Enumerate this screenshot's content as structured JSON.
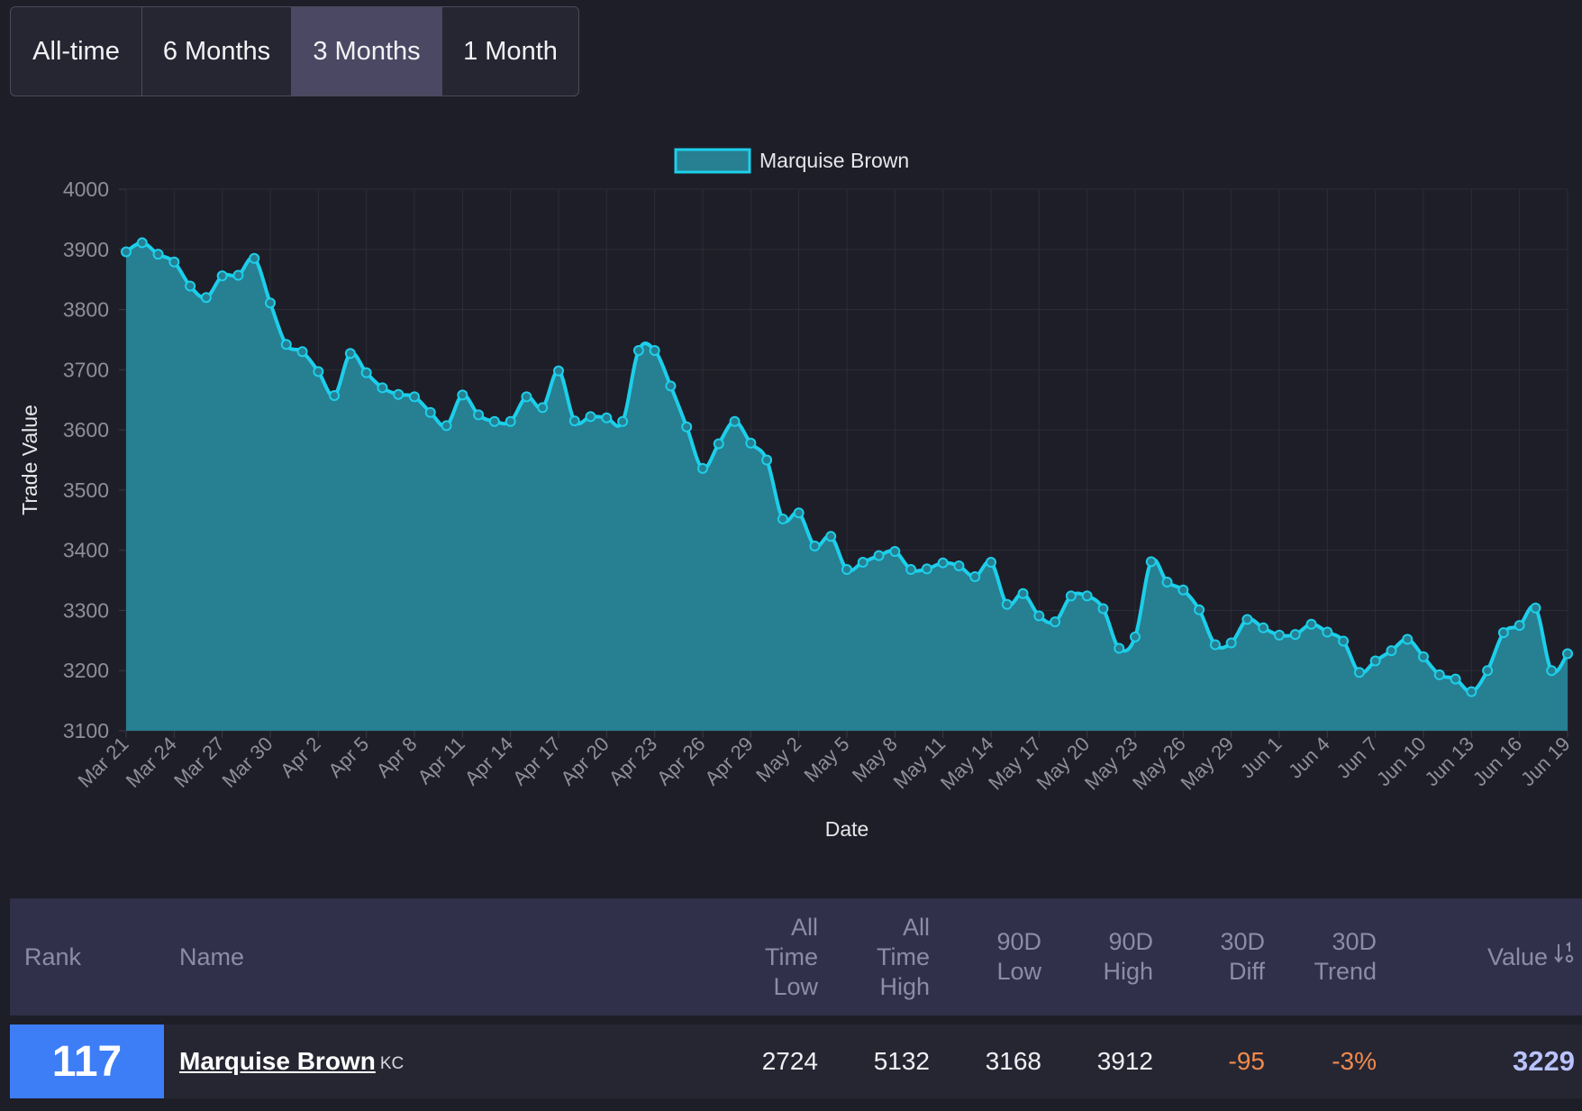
{
  "tabs": [
    {
      "label": "All-time",
      "active": false
    },
    {
      "label": "6 Months",
      "active": false
    },
    {
      "label": "3 Months",
      "active": true
    },
    {
      "label": "1 Month",
      "active": false
    }
  ],
  "colors": {
    "background": "#1e1e28",
    "line": "#1ccfea",
    "fill": "#277f92",
    "grid": "#2c2c38",
    "rank_box": "#3d7ef7",
    "negative": "#f08a4b",
    "value": "#b9c3ff"
  },
  "chart_data": {
    "type": "area",
    "xlabel": "Date",
    "ylabel": "Trade Value",
    "ylim": [
      3100,
      4000
    ],
    "yticks": [
      "4000",
      "3900",
      "3800",
      "3700",
      "3600",
      "3500",
      "3400",
      "3300",
      "3200",
      "3100"
    ],
    "xticks": [
      "Mar 21",
      "Mar 24",
      "Mar 27",
      "Mar 30",
      "Apr 2",
      "Apr 5",
      "Apr 8",
      "Apr 11",
      "Apr 14",
      "Apr 17",
      "Apr 20",
      "Apr 23",
      "Apr 26",
      "Apr 29",
      "May 2",
      "May 5",
      "May 8",
      "May 11",
      "May 14",
      "May 17",
      "May 20",
      "May 23",
      "May 26",
      "May 29",
      "Jun 1",
      "Jun 4",
      "Jun 7",
      "Jun 10",
      "Jun 13",
      "Jun 16",
      "Jun 19"
    ],
    "legend": "top-center",
    "grid": true,
    "series": [
      {
        "name": "Marquise Brown",
        "values": [
          3896,
          3911,
          3892,
          3879,
          3839,
          3820,
          3856,
          3857,
          3885,
          3811,
          3742,
          3730,
          3697,
          3657,
          3727,
          3695,
          3670,
          3659,
          3655,
          3629,
          3607,
          3658,
          3625,
          3614,
          3614,
          3655,
          3637,
          3698,
          3615,
          3622,
          3620,
          3614,
          3732,
          3732,
          3673,
          3605,
          3536,
          3577,
          3614,
          3578,
          3550,
          3452,
          3462,
          3407,
          3423,
          3368,
          3380,
          3391,
          3398,
          3368,
          3369,
          3379,
          3374,
          3356,
          3380,
          3310,
          3328,
          3291,
          3281,
          3324,
          3324,
          3303,
          3237,
          3256,
          3381,
          3347,
          3334,
          3301,
          3243,
          3246,
          3285,
          3271,
          3259,
          3260,
          3277,
          3264,
          3249,
          3197,
          3216,
          3233,
          3252,
          3223,
          3193,
          3186,
          3165,
          3200,
          3263,
          3275,
          3304,
          3200,
          3228
        ]
      }
    ]
  },
  "table": {
    "headers": {
      "rank": "Rank",
      "name": "Name",
      "all_time_low": [
        "All",
        "Time",
        "Low"
      ],
      "all_time_high": [
        "All",
        "Time",
        "High"
      ],
      "low_90d": [
        "90D",
        "Low"
      ],
      "high_90d": [
        "90D",
        "High"
      ],
      "diff_30d": [
        "30D",
        "Diff"
      ],
      "trend_30d": [
        "30D",
        "Trend"
      ],
      "value": "Value"
    },
    "sort_icon": "sort-descending-icon",
    "row": {
      "rank": "117",
      "name": "Marquise Brown",
      "team": "KC",
      "all_time_low": "2724",
      "all_time_high": "5132",
      "low_90d": "3168",
      "high_90d": "3912",
      "diff_30d": "-95",
      "trend_30d": "-3%",
      "value": "3229"
    }
  }
}
